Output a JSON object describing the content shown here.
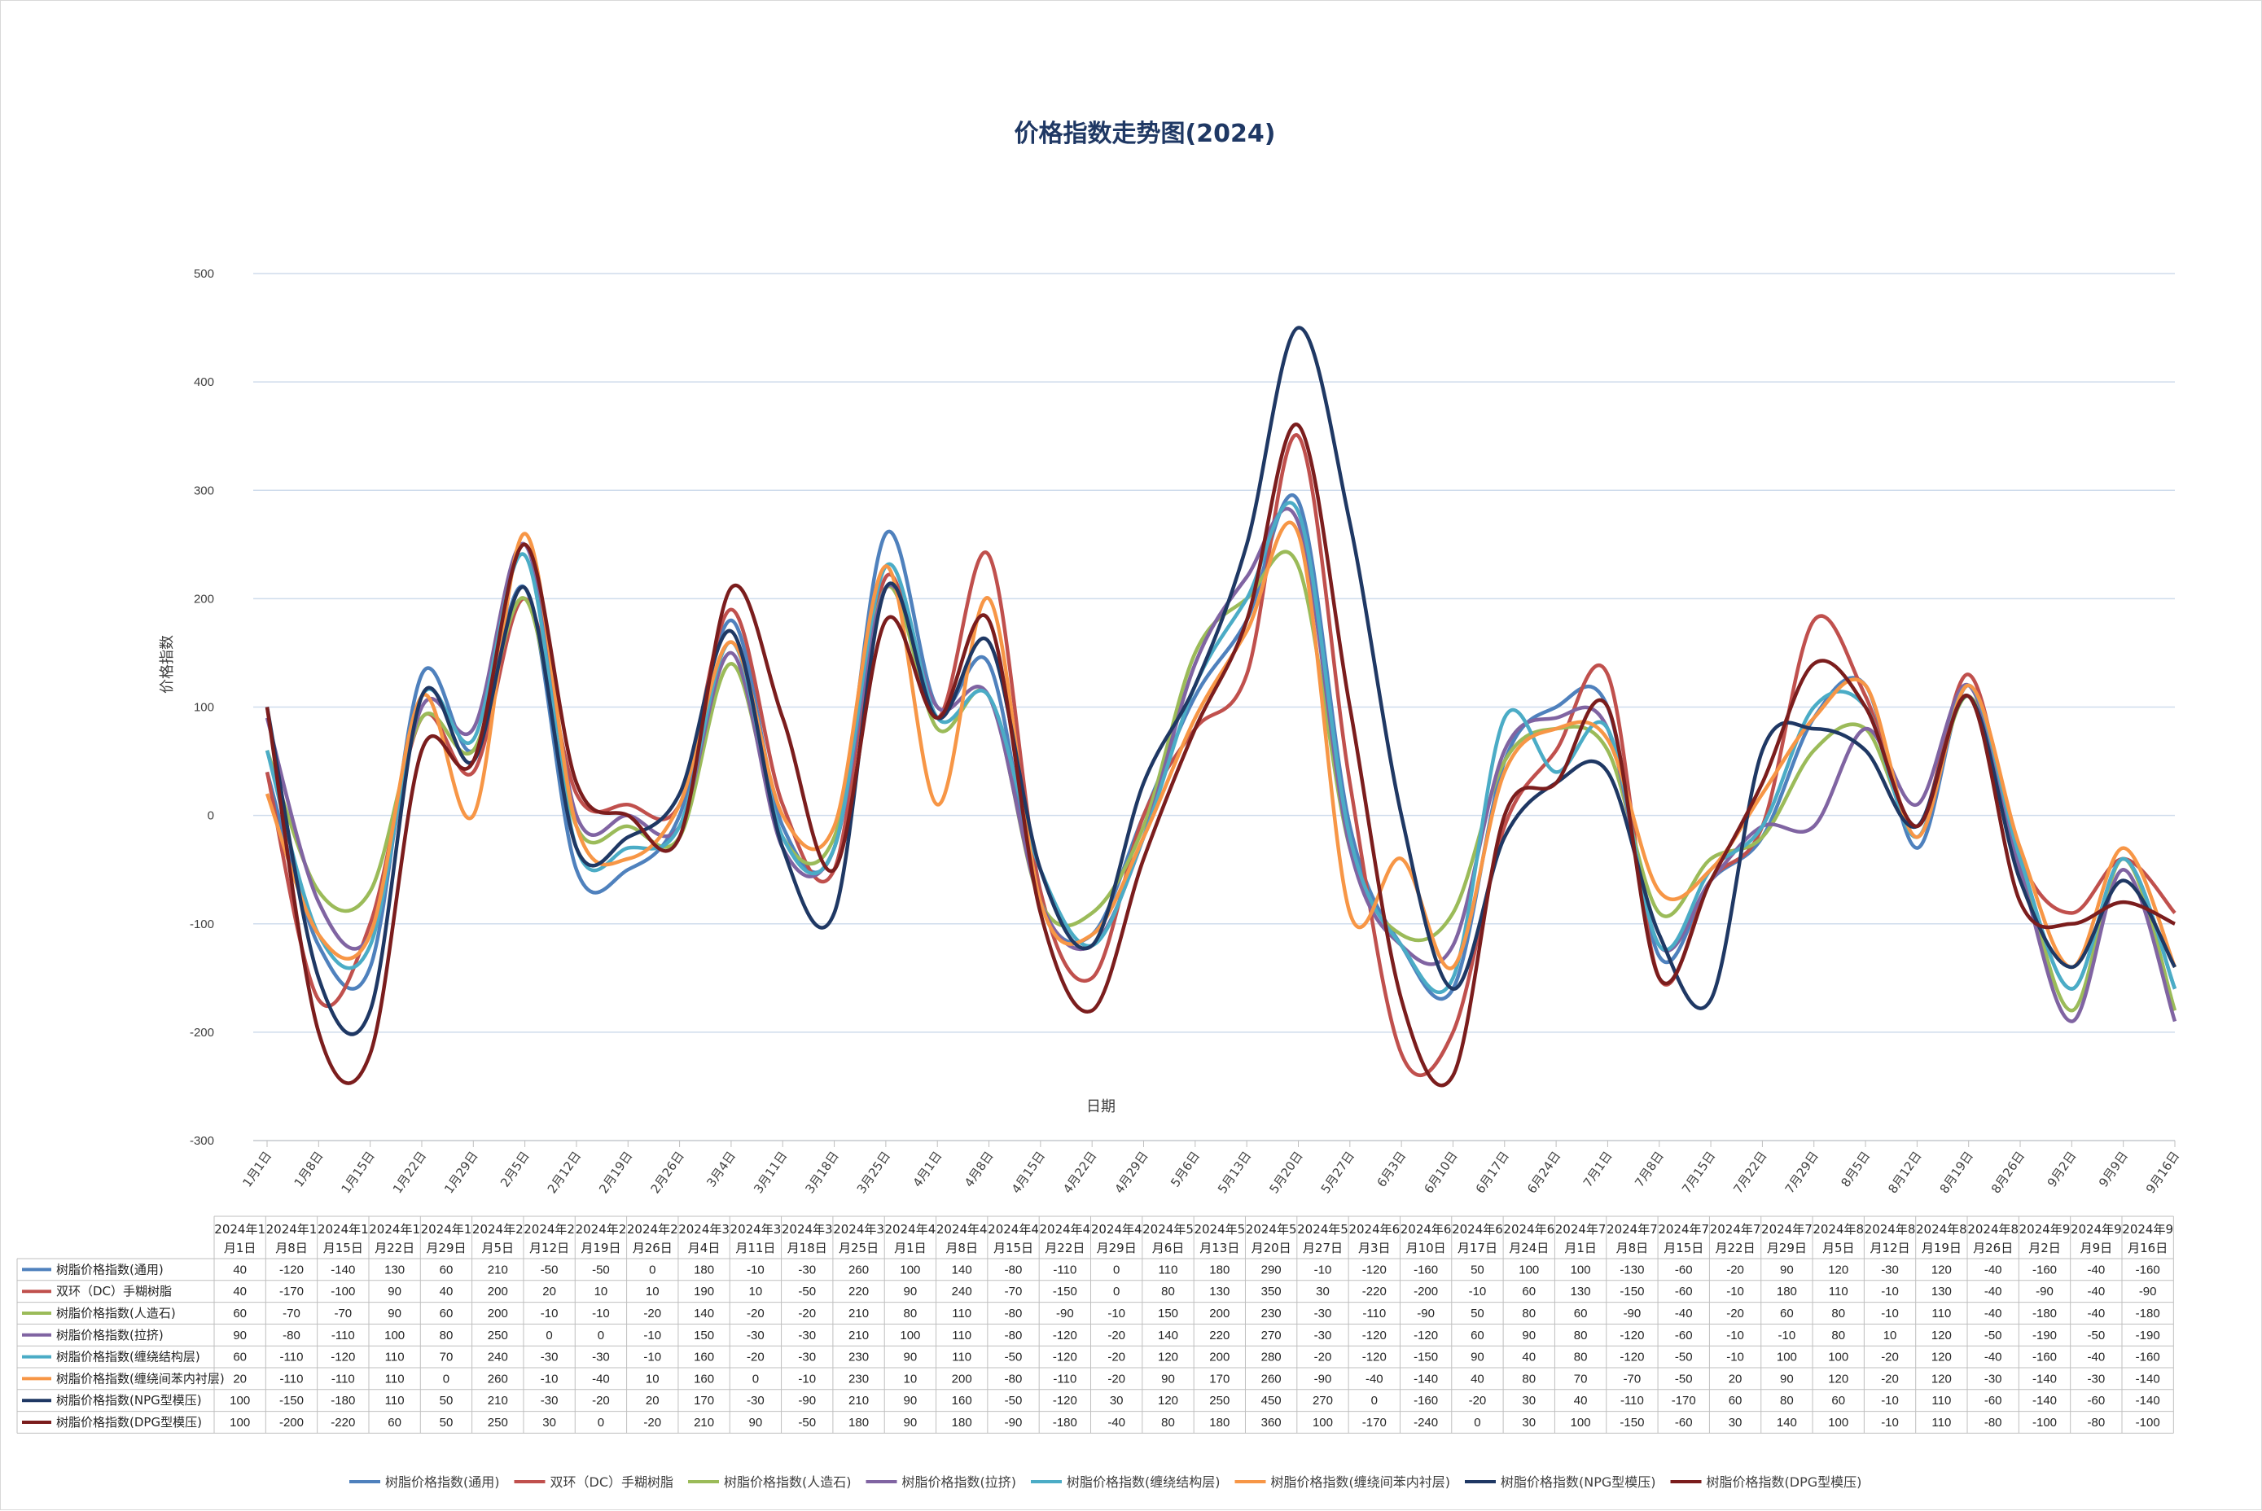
{
  "chart_data": {
    "type": "line",
    "title": "价格指数走势图(2024)",
    "xlabel": "日期",
    "ylabel": "价格指数",
    "ylim": [
      -300,
      500
    ],
    "yticks": [
      500,
      400,
      300,
      200,
      100,
      0,
      -100,
      -200,
      -300
    ],
    "grid": true,
    "legend": "bottom",
    "categories": [
      "1月1日",
      "1月8日",
      "1月15日",
      "1月22日",
      "1月29日",
      "2月5日",
      "2月12日",
      "2月19日",
      "2月26日",
      "3月4日",
      "3月11日",
      "3月18日",
      "3月25日",
      "4月1日",
      "4月8日",
      "4月15日",
      "4月22日",
      "4月29日",
      "5月6日",
      "5月13日",
      "5月20日",
      "5月27日",
      "6月3日",
      "6月10日",
      "6月17日",
      "6月24日",
      "7月1日",
      "7月8日",
      "7月15日",
      "7月22日",
      "7月29日",
      "8月5日",
      "8月12日",
      "8月19日",
      "8月26日",
      "9月2日",
      "9月9日",
      "9月16日"
    ],
    "table_headers": [
      [
        "2024年1",
        "月1日"
      ],
      [
        "2024年1",
        "月8日"
      ],
      [
        "2024年1",
        "月15日"
      ],
      [
        "2024年1",
        "月22日"
      ],
      [
        "2024年1",
        "月29日"
      ],
      [
        "2024年2",
        "月5日"
      ],
      [
        "2024年2",
        "月12日"
      ],
      [
        "2024年2",
        "月19日"
      ],
      [
        "2024年2",
        "月26日"
      ],
      [
        "2024年3",
        "月4日"
      ],
      [
        "2024年3",
        "月11日"
      ],
      [
        "2024年3",
        "月18日"
      ],
      [
        "2024年3",
        "月25日"
      ],
      [
        "2024年4",
        "月1日"
      ],
      [
        "2024年4",
        "月8日"
      ],
      [
        "2024年4",
        "月15日"
      ],
      [
        "2024年4",
        "月22日"
      ],
      [
        "2024年4",
        "月29日"
      ],
      [
        "2024年5",
        "月6日"
      ],
      [
        "2024年5",
        "月13日"
      ],
      [
        "2024年5",
        "月20日"
      ],
      [
        "2024年5",
        "月27日"
      ],
      [
        "2024年6",
        "月3日"
      ],
      [
        "2024年6",
        "月10日"
      ],
      [
        "2024年6",
        "月17日"
      ],
      [
        "2024年6",
        "月24日"
      ],
      [
        "2024年7",
        "月1日"
      ],
      [
        "2024年7",
        "月8日"
      ],
      [
        "2024年7",
        "月15日"
      ],
      [
        "2024年7",
        "月22日"
      ],
      [
        "2024年7",
        "月29日"
      ],
      [
        "2024年8",
        "月5日"
      ],
      [
        "2024年8",
        "月12日"
      ],
      [
        "2024年8",
        "月19日"
      ],
      [
        "2024年8",
        "月26日"
      ],
      [
        "2024年9",
        "月2日"
      ],
      [
        "2024年9",
        "月9日"
      ],
      [
        "2024年9",
        "月16日"
      ]
    ],
    "series": [
      {
        "name": "树脂价格指数(通用)",
        "color": "#4f81bd",
        "values": [
          40,
          -120,
          -140,
          130,
          60,
          210,
          -50,
          -50,
          0,
          180,
          -10,
          -30,
          260,
          100,
          140,
          -80,
          -110,
          0,
          110,
          180,
          290,
          -10,
          -120,
          -160,
          50,
          100,
          100,
          -130,
          -60,
          -20,
          90,
          120,
          -30,
          120,
          -40,
          -160,
          -40,
          -160
        ]
      },
      {
        "name": "双环（DC）手糊树脂",
        "color": "#c0504d",
        "values": [
          40,
          -170,
          -100,
          90,
          40,
          200,
          20,
          10,
          10,
          190,
          10,
          -50,
          220,
          90,
          240,
          -70,
          -150,
          0,
          80,
          130,
          350,
          30,
          -220,
          -200,
          -10,
          60,
          130,
          -150,
          -60,
          -10,
          180,
          110,
          -10,
          130,
          -40,
          -90,
          -40,
          -90
        ]
      },
      {
        "name": "树脂价格指数(人造石)",
        "color": "#9bbb59",
        "values": [
          60,
          -70,
          -70,
          90,
          60,
          200,
          -10,
          -10,
          -20,
          140,
          -20,
          -20,
          210,
          80,
          110,
          -80,
          -90,
          -10,
          150,
          200,
          230,
          -30,
          -110,
          -90,
          50,
          80,
          60,
          -90,
          -40,
          -20,
          60,
          80,
          -10,
          110,
          -40,
          -180,
          -40,
          -180
        ]
      },
      {
        "name": "树脂价格指数(拉挤)",
        "color": "#8064a2",
        "values": [
          90,
          -80,
          -110,
          100,
          80,
          250,
          0,
          0,
          -10,
          150,
          -30,
          -30,
          210,
          100,
          110,
          -80,
          -120,
          -20,
          140,
          220,
          270,
          -30,
          -120,
          -120,
          60,
          90,
          80,
          -120,
          -60,
          -10,
          -10,
          80,
          10,
          120,
          -50,
          -190,
          -50,
          -190
        ]
      },
      {
        "name": "树脂价格指数(缠绕结构层)",
        "color": "#4bacc6",
        "values": [
          60,
          -110,
          -120,
          110,
          70,
          240,
          -30,
          -30,
          -10,
          160,
          -20,
          -30,
          230,
          90,
          110,
          -50,
          -120,
          -20,
          120,
          200,
          280,
          -20,
          -120,
          -150,
          90,
          40,
          80,
          -120,
          -50,
          -10,
          100,
          100,
          -20,
          120,
          -40,
          -160,
          -40,
          -160
        ]
      },
      {
        "name": "树脂价格指数(缠绕间苯内衬层)",
        "color": "#f79646",
        "values": [
          20,
          -110,
          -110,
          110,
          0,
          260,
          -10,
          -40,
          10,
          160,
          0,
          -10,
          230,
          10,
          200,
          -80,
          -110,
          -20,
          90,
          170,
          260,
          -90,
          -40,
          -140,
          40,
          80,
          70,
          -70,
          -50,
          20,
          90,
          120,
          -20,
          120,
          -30,
          -140,
          -30,
          -140
        ]
      },
      {
        "name": "树脂价格指数(NPG型模压)",
        "color": "#1f3864",
        "values": [
          100,
          -150,
          -180,
          110,
          50,
          210,
          -30,
          -20,
          20,
          170,
          -30,
          -90,
          210,
          90,
          160,
          -50,
          -120,
          30,
          120,
          250,
          450,
          270,
          0,
          -160,
          -20,
          30,
          40,
          -110,
          -170,
          60,
          80,
          60,
          -10,
          110,
          -60,
          -140,
          -60,
          -140
        ]
      },
      {
        "name": "树脂价格指数(DPG型模压)",
        "color": "#7b1d1d",
        "values": [
          100,
          -200,
          -220,
          60,
          50,
          250,
          30,
          0,
          -20,
          210,
          90,
          -50,
          180,
          90,
          180,
          -90,
          -180,
          -40,
          80,
          180,
          360,
          100,
          -170,
          -240,
          0,
          30,
          100,
          -150,
          -60,
          30,
          140,
          100,
          -10,
          110,
          -80,
          -100,
          -80,
          -100
        ]
      }
    ]
  }
}
